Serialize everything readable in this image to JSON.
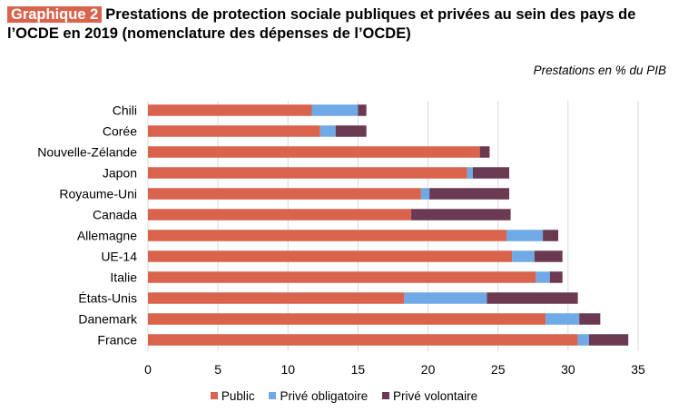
{
  "header": {
    "badge": "Graphique 2",
    "title": "Prestations de protection sociale publiques et privées au sein des pays de l’OCDE en 2019 (nomenclature des dépenses de l’OCDE)"
  },
  "chart_data": {
    "type": "bar",
    "orientation": "horizontal",
    "stacked": true,
    "title": "Prestations de protection sociale publiques et privées au sein des pays de l’OCDE en 2019 (nomenclature des dépenses de l’OCDE)",
    "units_note": "Prestations en % du PIB",
    "categories": [
      "Chili",
      "Corée",
      "Nouvelle-Zélande",
      "Japon",
      "Royaume-Uni",
      "Canada",
      "Allemagne",
      "UE-14",
      "Italie",
      "États-Unis",
      "Danemark",
      "France"
    ],
    "series": [
      {
        "name": "Public",
        "color": "#d9634c",
        "values": [
          11.7,
          12.3,
          23.7,
          22.8,
          19.5,
          18.8,
          25.6,
          26.0,
          27.7,
          18.3,
          28.4,
          30.7
        ]
      },
      {
        "name": "Privé obligatoire",
        "color": "#6fa9e6",
        "values": [
          3.3,
          1.1,
          0.0,
          0.4,
          0.6,
          0.0,
          2.6,
          1.6,
          1.0,
          5.9,
          2.4,
          0.8
        ]
      },
      {
        "name": "Privé volontaire",
        "color": "#6b3a52",
        "values": [
          0.6,
          2.2,
          0.7,
          2.6,
          5.7,
          7.1,
          1.1,
          2.0,
          0.9,
          6.5,
          1.5,
          2.8
        ]
      }
    ],
    "xlim": [
      0,
      35
    ],
    "xticks": [
      0,
      5,
      10,
      15,
      20,
      25,
      30,
      35
    ],
    "grid": "vertical",
    "legend_position": "bottom"
  }
}
